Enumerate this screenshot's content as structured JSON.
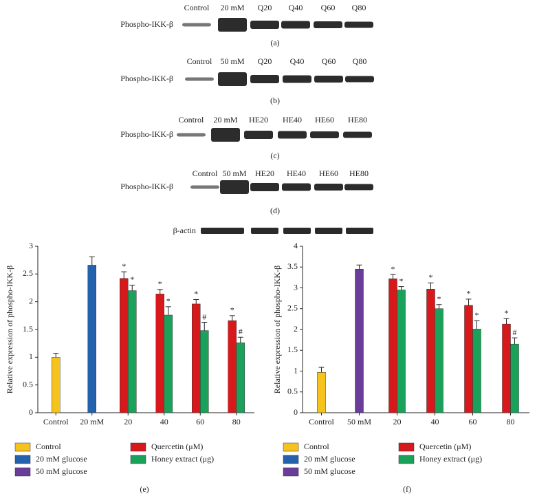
{
  "blots": [
    {
      "label": "Phospho-IKK-β",
      "lanes": [
        "Control",
        "20 mM",
        "Q20",
        "Q40",
        "Q60",
        "Q80"
      ],
      "caption": "(a)"
    },
    {
      "label": "Phospho-IKK-β",
      "lanes": [
        "Control",
        "50 mM",
        "Q20",
        "Q40",
        "Q60",
        "Q80"
      ],
      "caption": "(b)"
    },
    {
      "label": "Phospho-IKK-β",
      "lanes": [
        "Control",
        "20 mM",
        "HE20",
        "HE40",
        "HE60",
        "HE80"
      ],
      "caption": "(c)"
    },
    {
      "label": "Phospho-IKK-β",
      "lanes": [
        "Control",
        "50 mM",
        "HE20",
        "HE40",
        "HE60",
        "HE80"
      ],
      "caption": "(d)"
    }
  ],
  "actin_label": "β-actin",
  "chart_data": [
    {
      "type": "bar",
      "caption": "(e)",
      "ylabel": "Relative expression of phospho-IKK-β",
      "categories": [
        "Control",
        "20 mM",
        "20",
        "40",
        "60",
        "80"
      ],
      "ylim": [
        0,
        3
      ],
      "yticks": [
        0,
        0.5,
        1,
        1.5,
        2,
        2.5,
        3
      ],
      "series": [
        {
          "name": "Control",
          "color": "#f6c21c",
          "values": [
            1.0,
            null,
            null,
            null,
            null,
            null
          ],
          "errors": [
            0.07,
            null,
            null,
            null,
            null,
            null
          ],
          "markers": [
            null,
            null,
            null,
            null,
            null,
            null
          ]
        },
        {
          "name": "20 mM glucose",
          "color": "#2462ad",
          "values": [
            null,
            2.66,
            null,
            null,
            null,
            null
          ],
          "errors": [
            null,
            0.15,
            null,
            null,
            null,
            null
          ],
          "markers": [
            null,
            null,
            null,
            null,
            null,
            null
          ]
        },
        {
          "name": "50 mM glucose",
          "color": "#6a3d9a",
          "values": [
            null,
            null,
            null,
            null,
            null,
            null
          ],
          "errors": [
            null,
            null,
            null,
            null,
            null,
            null
          ],
          "markers": [
            null,
            null,
            null,
            null,
            null,
            null
          ]
        },
        {
          "name": "Quercetin (μM)",
          "color": "#d7191c",
          "values": [
            null,
            null,
            2.42,
            2.14,
            1.96,
            1.66
          ],
          "errors": [
            null,
            null,
            0.12,
            0.08,
            0.08,
            0.09
          ],
          "markers": [
            null,
            null,
            "*",
            "*",
            "*",
            "*"
          ]
        },
        {
          "name": "Honey extract (μg)",
          "color": "#1aa15a",
          "values": [
            null,
            null,
            2.2,
            1.76,
            1.48,
            1.26
          ],
          "errors": [
            null,
            null,
            0.1,
            0.15,
            0.15,
            0.1
          ],
          "markers": [
            null,
            null,
            "*",
            "*",
            "#",
            "#"
          ]
        }
      ]
    },
    {
      "type": "bar",
      "caption": "(f)",
      "ylabel": "Relative expression of phospho-IKK-β",
      "categories": [
        "Control",
        "50 mM",
        "20",
        "40",
        "60",
        "80"
      ],
      "ylim": [
        0,
        4
      ],
      "yticks": [
        0,
        0.5,
        1,
        1.5,
        2,
        2.5,
        3,
        3.5,
        4
      ],
      "series": [
        {
          "name": "Control",
          "color": "#f6c21c",
          "values": [
            0.97,
            null,
            null,
            null,
            null,
            null
          ],
          "errors": [
            0.12,
            null,
            null,
            null,
            null,
            null
          ],
          "markers": [
            null,
            null,
            null,
            null,
            null,
            null
          ]
        },
        {
          "name": "20 mM glucose",
          "color": "#2462ad",
          "values": [
            null,
            null,
            null,
            null,
            null,
            null
          ],
          "errors": [
            null,
            null,
            null,
            null,
            null,
            null
          ],
          "markers": [
            null,
            null,
            null,
            null,
            null,
            null
          ]
        },
        {
          "name": "50 mM glucose",
          "color": "#6a3d9a",
          "values": [
            null,
            3.45,
            null,
            null,
            null,
            null
          ],
          "errors": [
            null,
            0.1,
            null,
            null,
            null,
            null
          ],
          "markers": [
            null,
            null,
            null,
            null,
            null,
            null
          ]
        },
        {
          "name": "Quercetin (μM)",
          "color": "#d7191c",
          "values": [
            null,
            null,
            3.22,
            2.97,
            2.58,
            2.13
          ],
          "errors": [
            null,
            null,
            0.1,
            0.15,
            0.15,
            0.13
          ],
          "markers": [
            null,
            null,
            "*",
            "*",
            "*",
            "*"
          ]
        },
        {
          "name": "Honey extract (μg)",
          "color": "#1aa15a",
          "values": [
            null,
            null,
            2.95,
            2.5,
            2.01,
            1.65
          ],
          "errors": [
            null,
            null,
            0.08,
            0.1,
            0.2,
            0.15
          ],
          "markers": [
            null,
            null,
            "*",
            "*",
            "*",
            "#"
          ]
        }
      ]
    }
  ]
}
